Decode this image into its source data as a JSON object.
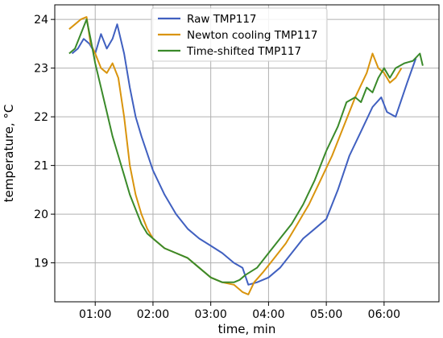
{
  "chart_data": {
    "type": "line",
    "xlabel": "time, min",
    "ylabel": "temperature, °C",
    "xlim": [
      0.3,
      6.95
    ],
    "ylim": [
      18.2,
      24.3
    ],
    "grid": true,
    "legend_placement": "top-center",
    "x_tick_values": [
      1,
      2,
      3,
      4,
      5,
      6
    ],
    "x_tick_labels": [
      "01:00",
      "02:00",
      "03:00",
      "04:00",
      "05:00",
      "06:00"
    ],
    "y_tick_values": [
      19,
      20,
      21,
      22,
      23,
      24
    ],
    "y_tick_labels": [
      "19",
      "20",
      "21",
      "22",
      "23",
      "24"
    ],
    "series": [
      {
        "name": "Raw TMP117",
        "color": "#4060c0",
        "x": [
          0.6,
          0.7,
          0.8,
          0.9,
          1.0,
          1.1,
          1.2,
          1.3,
          1.38,
          1.5,
          1.6,
          1.7,
          1.8,
          2.0,
          2.2,
          2.4,
          2.6,
          2.8,
          3.0,
          3.2,
          3.4,
          3.55,
          3.65,
          3.8,
          4.0,
          4.2,
          4.4,
          4.6,
          4.8,
          5.0,
          5.2,
          5.4,
          5.6,
          5.8,
          5.95,
          6.05,
          6.2,
          6.4,
          6.55
        ],
        "y": [
          23.3,
          23.4,
          23.6,
          23.5,
          23.3,
          23.7,
          23.4,
          23.6,
          23.9,
          23.3,
          22.6,
          22.0,
          21.6,
          20.9,
          20.4,
          20.0,
          19.7,
          19.5,
          19.35,
          19.2,
          19.0,
          18.9,
          18.55,
          18.6,
          18.7,
          18.9,
          19.2,
          19.5,
          19.7,
          19.9,
          20.5,
          21.2,
          21.7,
          22.2,
          22.4,
          22.1,
          22.0,
          22.7,
          23.2
        ]
      },
      {
        "name": "Newton cooling TMP117",
        "color": "#d9940d",
        "x": [
          0.55,
          0.65,
          0.75,
          0.85,
          0.92,
          1.0,
          1.1,
          1.2,
          1.3,
          1.4,
          1.5,
          1.6,
          1.7,
          1.8,
          1.9,
          2.0,
          2.2,
          2.4,
          2.6,
          2.8,
          3.0,
          3.2,
          3.4,
          3.55,
          3.65,
          3.75,
          3.9,
          4.1,
          4.3,
          4.5,
          4.7,
          4.9,
          5.1,
          5.3,
          5.5,
          5.7,
          5.8,
          5.9,
          6.0,
          6.1,
          6.2,
          6.3
        ],
        "y": [
          23.8,
          23.9,
          24.0,
          24.05,
          23.5,
          23.3,
          23.0,
          22.9,
          23.1,
          22.8,
          22.0,
          21.0,
          20.4,
          20.0,
          19.7,
          19.5,
          19.3,
          19.2,
          19.1,
          18.9,
          18.7,
          18.6,
          18.55,
          18.4,
          18.35,
          18.6,
          18.8,
          19.1,
          19.4,
          19.8,
          20.2,
          20.7,
          21.2,
          21.8,
          22.4,
          22.9,
          23.3,
          23.0,
          22.9,
          22.7,
          22.8,
          23.0
        ]
      },
      {
        "name": "Time-shifted TMP117",
        "color": "#3a8a2a",
        "x": [
          0.55,
          0.65,
          0.75,
          0.85,
          0.92,
          1.0,
          1.1,
          1.2,
          1.3,
          1.4,
          1.5,
          1.6,
          1.7,
          1.8,
          1.9,
          2.0,
          2.2,
          2.4,
          2.6,
          2.8,
          3.0,
          3.2,
          3.4,
          3.5,
          3.6,
          3.8,
          4.0,
          4.2,
          4.4,
          4.6,
          4.8,
          5.0,
          5.2,
          5.35,
          5.5,
          5.6,
          5.7,
          5.8,
          5.9,
          6.0,
          6.1,
          6.2,
          6.35,
          6.5,
          6.62,
          6.67
        ],
        "y": [
          23.3,
          23.4,
          23.7,
          24.0,
          23.6,
          23.1,
          22.6,
          22.1,
          21.6,
          21.2,
          20.8,
          20.4,
          20.1,
          19.8,
          19.6,
          19.5,
          19.3,
          19.2,
          19.1,
          18.9,
          18.7,
          18.6,
          18.6,
          18.65,
          18.75,
          18.9,
          19.2,
          19.5,
          19.8,
          20.2,
          20.7,
          21.3,
          21.8,
          22.3,
          22.4,
          22.3,
          22.6,
          22.5,
          22.8,
          23.0,
          22.8,
          23.0,
          23.1,
          23.15,
          23.3,
          23.05
        ]
      }
    ]
  }
}
